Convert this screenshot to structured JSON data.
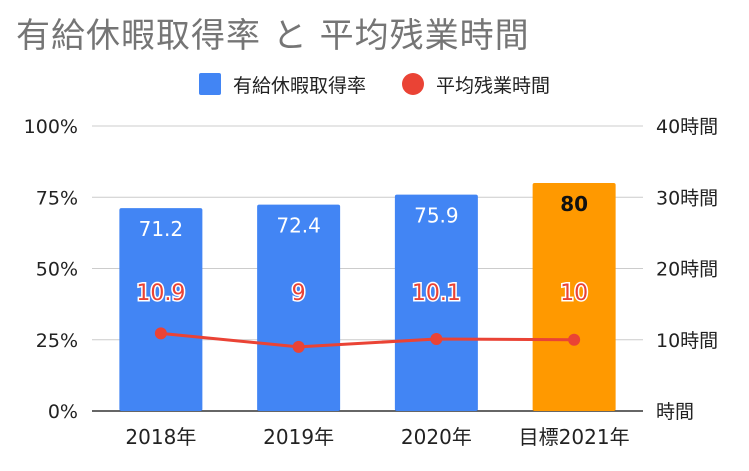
{
  "chart_data": {
    "type": "bar+line",
    "title": "有給休暇取得率 と 平均残業時間",
    "categories": [
      "2018年",
      "2019年",
      "2020年",
      "目標2021年"
    ],
    "series": [
      {
        "name": "有給休暇取得率",
        "kind": "bar",
        "axis": "left",
        "values": [
          71.2,
          72.4,
          75.9,
          80
        ],
        "labels": [
          "71.2",
          "72.4",
          "75.9",
          "80"
        ],
        "colors": [
          "#4285f4",
          "#4285f4",
          "#4285f4",
          "#ff9900"
        ]
      },
      {
        "name": "平均残業時間",
        "kind": "line",
        "axis": "right",
        "values": [
          10.9,
          9,
          10.1,
          10
        ],
        "labels": [
          "10.9",
          "9",
          "10.1",
          "10"
        ],
        "color": "#ea4335"
      }
    ],
    "y_left": {
      "min": 0,
      "max": 100,
      "ticks": [
        "0%",
        "25%",
        "50%",
        "75%",
        "100%"
      ],
      "tick_values": [
        0,
        25,
        50,
        75,
        100
      ]
    },
    "y_right": {
      "min": 0,
      "max": 40,
      "ticks": [
        "時間",
        "10時間",
        "20時間",
        "30時間",
        "40時間"
      ],
      "tick_values": [
        0,
        10,
        20,
        30,
        40
      ]
    },
    "legend_position": "top-center",
    "grid": true
  },
  "colors": {
    "bar": "#4285f4",
    "target_bar": "#ff9900",
    "line": "#ea4335",
    "grid": "#cccccc",
    "title": "#757575"
  }
}
